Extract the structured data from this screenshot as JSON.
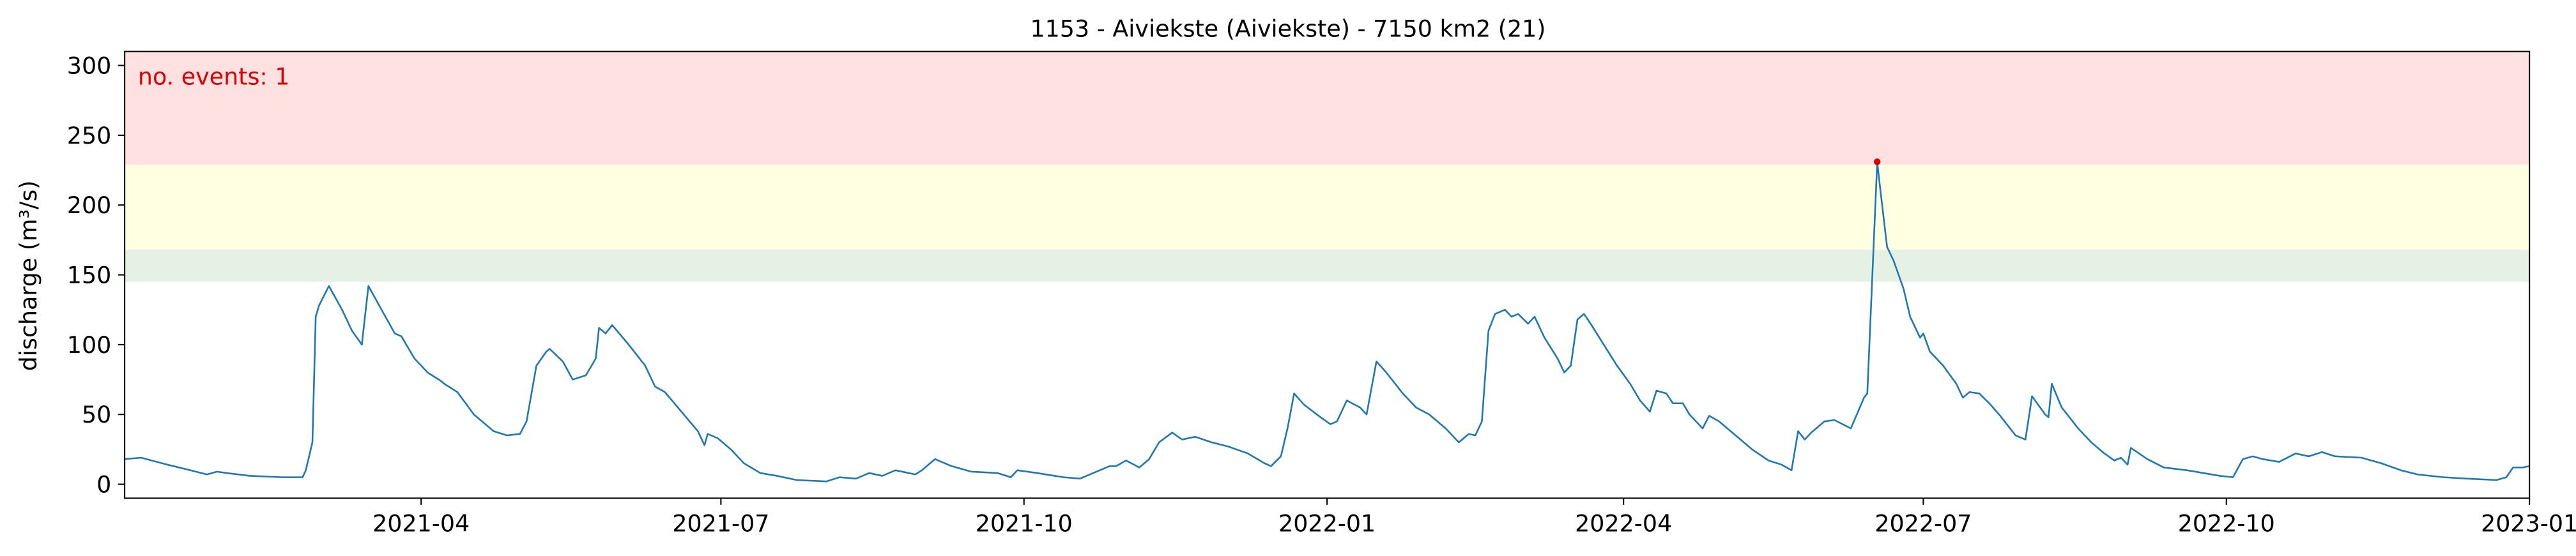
{
  "chart_data": {
    "type": "line",
    "title": "1153 - Aiviekste (Aiviekste) - 7150 km2 (21)",
    "y_label": "discharge (m³/s)",
    "annotation": "no. events: 1",
    "annotation_color": "#dd0000",
    "xlim": [
      0,
      730
    ],
    "xticks": [
      {
        "value": 90,
        "label": "2021-04"
      },
      {
        "value": 181,
        "label": "2021-07"
      },
      {
        "value": 273,
        "label": "2021-10"
      },
      {
        "value": 365,
        "label": "2022-01"
      },
      {
        "value": 455,
        "label": "2022-04"
      },
      {
        "value": 546,
        "label": "2022-07"
      },
      {
        "value": 638,
        "label": "2022-10"
      },
      {
        "value": 730,
        "label": "2023-01"
      }
    ],
    "ylim": [
      -10,
      310
    ],
    "yticks": [
      0,
      50,
      100,
      150,
      200,
      250,
      300
    ],
    "bands": [
      {
        "from": 145,
        "to": 168,
        "color": "#e5f1e5"
      },
      {
        "from": 168,
        "to": 229,
        "color": "#ffffe2"
      },
      {
        "from": 229,
        "to": 310,
        "color": "#ffe1e1"
      }
    ],
    "x": [
      0,
      5,
      13,
      20,
      25,
      28,
      31,
      38,
      48,
      54,
      55,
      57,
      58,
      59,
      62,
      66,
      69,
      72,
      74,
      78,
      82,
      84,
      88,
      92,
      96,
      97,
      101,
      106,
      112,
      116,
      120,
      122,
      125,
      128,
      129,
      133,
      136,
      140,
      143,
      144,
      146,
      148,
      153,
      158,
      161,
      164,
      169,
      174,
      176,
      177,
      180,
      184,
      188,
      193,
      198,
      204,
      213,
      217,
      222,
      226,
      230,
      234,
      240,
      242,
      246,
      251,
      257,
      265,
      269,
      271,
      277,
      285,
      290,
      294,
      299,
      301,
      304,
      308,
      311,
      314,
      318,
      321,
      325,
      330,
      335,
      341,
      346,
      348,
      351,
      353,
      355,
      358,
      363,
      366,
      368,
      371,
      375,
      377,
      380,
      383,
      388,
      392,
      396,
      401,
      405,
      408,
      410,
      412,
      414,
      416,
      419,
      421,
      423,
      426,
      428,
      431,
      435,
      437,
      439,
      441,
      443,
      445,
      449,
      453,
      457,
      460,
      463,
      465,
      468,
      470,
      473,
      475,
      479,
      481,
      484,
      489,
      494,
      499,
      503,
      506,
      508,
      510,
      512,
      516,
      519,
      524,
      528,
      529,
      532,
      533,
      535,
      537,
      540,
      542,
      545,
      546,
      548,
      552,
      556,
      558,
      560,
      563,
      566,
      569,
      574,
      577,
      579,
      583,
      584,
      585,
      588,
      593,
      597,
      601,
      604,
      606,
      608,
      609,
      614,
      619,
      626,
      631,
      636,
      640,
      643,
      646,
      649,
      654,
      659,
      663,
      667,
      671,
      679,
      685,
      691,
      696,
      704,
      711,
      720,
      723,
      725,
      728,
      730
    ],
    "series": [
      {
        "color": "#1f77b4",
        "values": [
          18,
          19,
          14,
          10,
          7,
          9,
          8,
          6,
          5,
          5,
          10,
          30,
          120,
          128,
          142,
          125,
          110,
          100,
          142,
          125,
          108,
          106,
          90,
          80,
          74,
          72,
          66,
          50,
          38,
          35,
          36,
          45,
          85,
          95,
          97,
          88,
          75,
          78,
          90,
          112,
          108,
          114,
          100,
          85,
          70,
          66,
          52,
          38,
          28,
          36,
          33,
          25,
          15,
          8,
          6,
          3,
          2,
          5,
          4,
          8,
          6,
          10,
          7,
          10,
          18,
          13,
          9,
          8,
          5,
          10,
          8,
          5,
          4,
          8,
          13,
          13,
          17,
          12,
          18,
          30,
          37,
          32,
          34,
          30,
          27,
          22,
          15,
          13,
          20,
          40,
          65,
          57,
          48,
          43,
          45,
          60,
          55,
          50,
          88,
          80,
          65,
          55,
          50,
          40,
          30,
          36,
          35,
          45,
          110,
          122,
          125,
          120,
          122,
          115,
          120,
          105,
          90,
          80,
          85,
          118,
          122,
          115,
          100,
          85,
          72,
          60,
          52,
          67,
          65,
          58,
          58,
          50,
          40,
          49,
          45,
          35,
          25,
          17,
          14,
          10,
          38,
          32,
          37,
          45,
          46,
          40,
          62,
          65,
          231,
          210,
          170,
          160,
          140,
          120,
          105,
          108,
          95,
          85,
          72,
          62,
          66,
          65,
          58,
          50,
          35,
          32,
          63,
          50,
          48,
          72,
          55,
          40,
          30,
          22,
          17,
          19,
          14,
          26,
          18,
          12,
          10,
          8,
          6,
          5,
          18,
          20,
          18,
          16,
          22,
          20,
          23,
          20,
          19,
          15,
          10,
          7,
          5,
          4,
          3,
          5,
          12,
          12,
          13
        ]
      }
    ],
    "events": {
      "x": [
        532
      ],
      "values": [
        231
      ],
      "color": "#dd0000"
    }
  }
}
